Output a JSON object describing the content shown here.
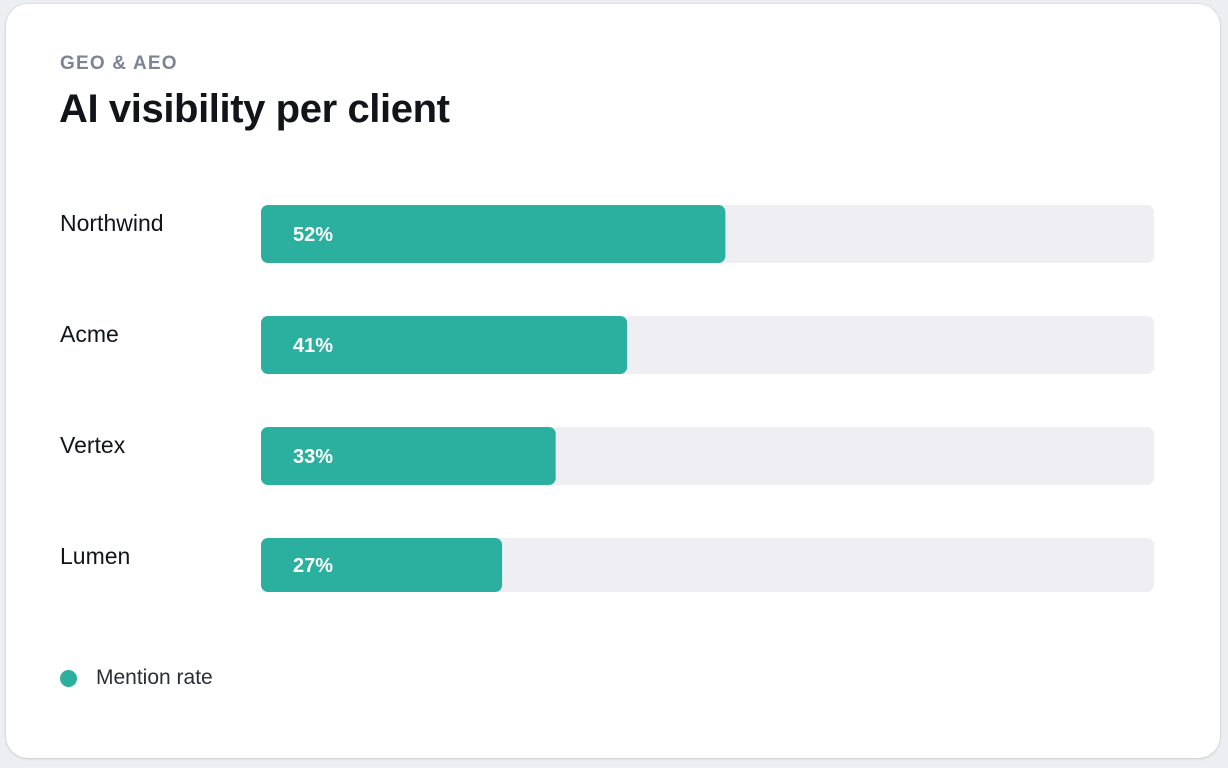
{
  "header": {
    "eyebrow": "GEO & AEO",
    "title": "AI visibility per client"
  },
  "colors": {
    "accent": "#2bb09f",
    "track": "#efeff3"
  },
  "chart_data": {
    "type": "bar",
    "orientation": "horizontal",
    "categories": [
      "Northwind",
      "Acme",
      "Vertex",
      "Lumen"
    ],
    "series": [
      {
        "name": "Mention rate",
        "values": [
          52,
          41,
          33,
          27
        ],
        "labels": [
          "52%",
          "41%",
          "33%",
          "27%"
        ]
      }
    ],
    "xlim": [
      0,
      100
    ],
    "unit": "%",
    "grid": false,
    "legend": "bottom-left"
  },
  "legend": {
    "label": "Mention rate"
  }
}
